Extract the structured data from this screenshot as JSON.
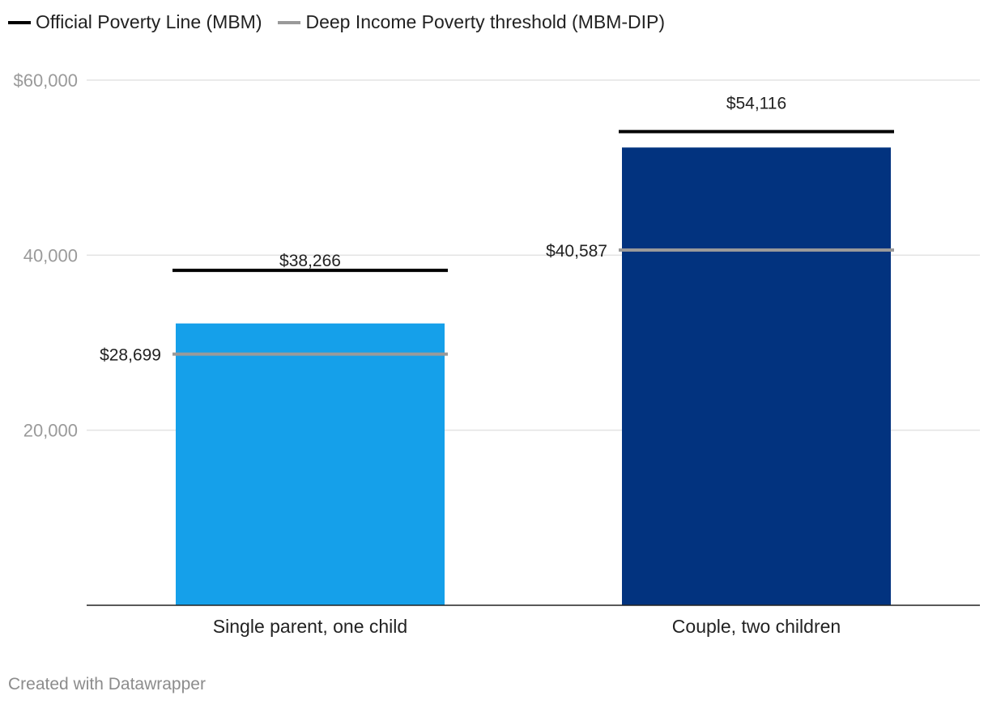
{
  "chart_data": {
    "type": "bar",
    "categories": [
      "Single parent, one child",
      "Couple, two children"
    ],
    "values": [
      32200,
      52300
    ],
    "bar_colors": [
      "#15a0ea",
      "#02337f"
    ],
    "reference_series": [
      {
        "name": "Official Poverty Line (MBM)",
        "color": "#000000",
        "values": [
          38266,
          54116
        ],
        "labels": [
          "$38,266",
          "$54,116"
        ]
      },
      {
        "name": "Deep Income Poverty threshold (MBM-DIP)",
        "color": "#9a9a9a",
        "values": [
          28699,
          40587
        ],
        "labels": [
          "$28,699",
          "$40,587"
        ]
      }
    ],
    "ylim": [
      0,
      60000
    ],
    "yticks": [
      {
        "value": 20000,
        "label": "20,000"
      },
      {
        "value": 40000,
        "label": "40,000"
      },
      {
        "value": 60000,
        "label": "$60,000"
      }
    ],
    "grid": true,
    "legend_position": "top-left",
    "title": "",
    "xlabel": "",
    "ylabel": ""
  },
  "legend": {
    "mbm_label": "Official Poverty Line (MBM)",
    "dip_label": "Deep Income Poverty threshold (MBM-DIP)"
  },
  "footer": {
    "credit": "Created with Datawrapper"
  },
  "colors": {
    "mbm": "#000000",
    "dip": "#9a9a9a",
    "tick_text": "#9a9a9a",
    "grid": "#e3e3e3",
    "footer_text": "#8c8c8c"
  }
}
